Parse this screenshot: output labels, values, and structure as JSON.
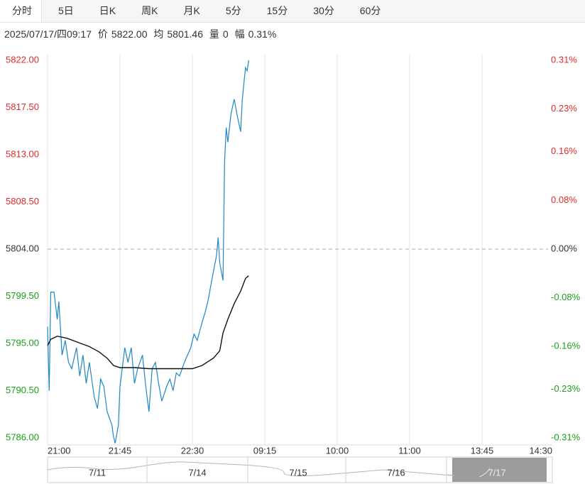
{
  "tabs": [
    "分时",
    "5日",
    "日K",
    "周K",
    "月K",
    "5分",
    "15分",
    "30分",
    "60分"
  ],
  "info": {
    "datetime": "2025/07/17/四09:17",
    "price_label": "价",
    "price": "5822.00",
    "avg_label": "均",
    "avg": "5801.46",
    "vol_label": "量",
    "vol": "0",
    "range_label": "幅",
    "range": "0.31%"
  },
  "chart_data": {
    "type": "line",
    "xlim": [
      0,
      315
    ],
    "xticks": [
      {
        "value": 0,
        "label": "21:00"
      },
      {
        "value": 45,
        "label": "21:45"
      },
      {
        "value": 90,
        "label": "22:30"
      },
      {
        "value": 135,
        "label": "09:15"
      },
      {
        "value": 180,
        "label": "10:00"
      },
      {
        "value": 225,
        "label": "11:00"
      },
      {
        "value": 270,
        "label": "13:45"
      },
      {
        "value": 315,
        "label": "14:30"
      }
    ],
    "ylim": [
      5786,
      5822
    ],
    "yticks": [
      {
        "value": 5822,
        "label": "5822.00"
      },
      {
        "value": 5817.5,
        "label": "5817.50"
      },
      {
        "value": 5813,
        "label": "5813.00"
      },
      {
        "value": 5808.5,
        "label": "5808.50"
      },
      {
        "value": 5804,
        "label": "5804.00"
      },
      {
        "value": 5799.5,
        "label": "5799.50"
      },
      {
        "value": 5795,
        "label": "5795.00"
      },
      {
        "value": 5790.5,
        "label": "5790.50"
      },
      {
        "value": 5786,
        "label": "5786.00"
      }
    ],
    "y2lim": [
      -0.31,
      0.31
    ],
    "y2ticks": [
      {
        "value": 0.31,
        "label": "0.31%"
      },
      {
        "value": 0.23,
        "label": "0.23%"
      },
      {
        "value": 0.16,
        "label": "0.16%"
      },
      {
        "value": 0.08,
        "label": "0.08%"
      },
      {
        "value": 0,
        "label": "0.00%"
      },
      {
        "value": -0.08,
        "label": "-0.08%"
      },
      {
        "value": -0.16,
        "label": "-0.16%"
      },
      {
        "value": -0.23,
        "label": "-0.23%"
      },
      {
        "value": -0.31,
        "label": "-0.31%"
      }
    ],
    "baseline": 5804,
    "up_color": "#e02b2b",
    "down_color": "#17a017",
    "flat_color": "#333333",
    "grid": true,
    "series": [
      {
        "color": "#1f87c5",
        "x": [
          0,
          1,
          2,
          4,
          6,
          7,
          9,
          11,
          13,
          15,
          18,
          20,
          22,
          24,
          26,
          29,
          31,
          33,
          35,
          37,
          40,
          41,
          42,
          44,
          45,
          48,
          50,
          52,
          54,
          56,
          59,
          61,
          63,
          65,
          67,
          69,
          71,
          74,
          76,
          78,
          80,
          82,
          85,
          87,
          89,
          91,
          93,
          96,
          98,
          100,
          102,
          105,
          106,
          107,
          109,
          110,
          111,
          112,
          114,
          116,
          118,
          120,
          121,
          123,
          124,
          125
        ],
        "values": [
          5796.6,
          5790.5,
          5799.9,
          5799.9,
          5797.3,
          5799.0,
          5793.9,
          5795.3,
          5793.2,
          5792.6,
          5794.6,
          5791.9,
          5793.9,
          5791.2,
          5793.2,
          5789.9,
          5788.8,
          5791.6,
          5790.9,
          5788.5,
          5787.2,
          5786.1,
          5785.5,
          5787.2,
          5790.9,
          5794.6,
          5793.2,
          5794.6,
          5791.2,
          5792.6,
          5793.9,
          5790.9,
          5788.5,
          5792.6,
          5793.2,
          5791.2,
          5789.5,
          5790.9,
          5791.6,
          5790.5,
          5792.2,
          5791.9,
          5793.2,
          5793.9,
          5794.6,
          5795.9,
          5795.3,
          5797.0,
          5798.0,
          5799.3,
          5801.0,
          5803.4,
          5805.1,
          5802.7,
          5801.0,
          5812.2,
          5815.6,
          5814.2,
          5816.9,
          5818.3,
          5816.6,
          5815.2,
          5818.3,
          5821.3,
          5821.0,
          5822.0
        ]
      },
      {
        "color": "#111111",
        "x": [
          0,
          2,
          6,
          12,
          19,
          26,
          32,
          37,
          41,
          45,
          54,
          63,
          76,
          90,
          96,
          103,
          107,
          109,
          112,
          116,
          120,
          123,
          125
        ],
        "values": [
          5794.8,
          5795.4,
          5795.7,
          5795.5,
          5795.1,
          5794.7,
          5794.2,
          5793.6,
          5792.9,
          5792.7,
          5792.7,
          5792.6,
          5792.6,
          5792.6,
          5792.9,
          5793.6,
          5794.3,
          5796.0,
          5797.3,
          5798.8,
          5800.0,
          5801.2,
          5801.46
        ]
      }
    ]
  },
  "navigator": {
    "labels": [
      "7/11",
      "7/14",
      "7/15",
      "7/16",
      "7/17"
    ]
  }
}
